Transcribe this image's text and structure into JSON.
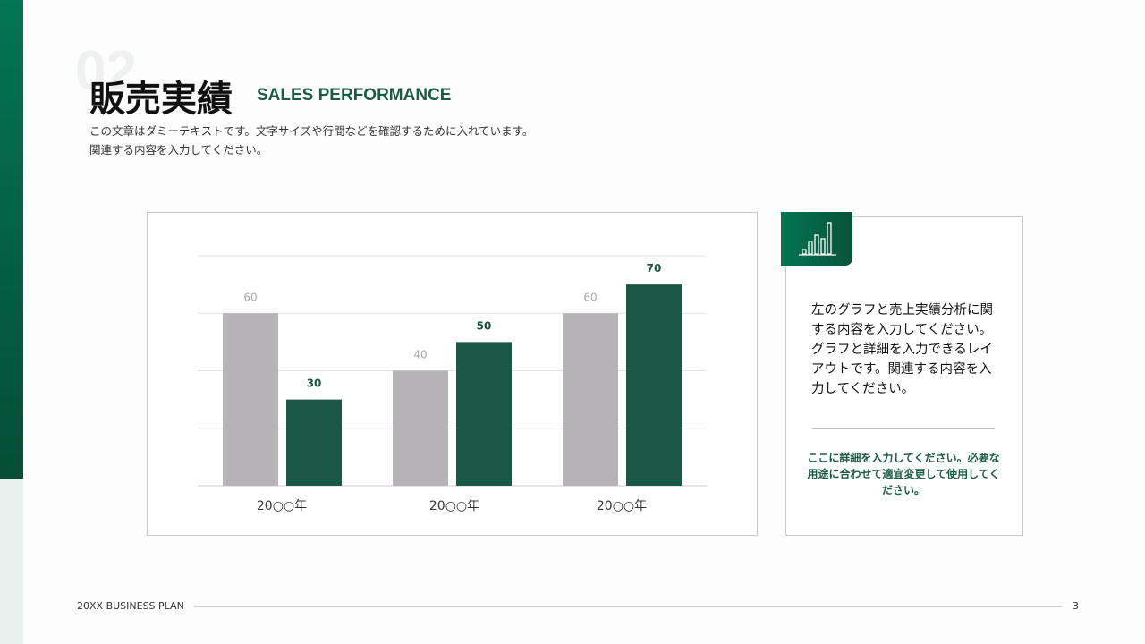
{
  "header": {
    "section_number": "02",
    "title": "販売実績",
    "subtitle": "SALES PERFORMANCE",
    "description_line1": "この文章はダミーテキストです。文字サイズや行間などを確認するために入れています。",
    "description_line2": "関連する内容を入力してください。"
  },
  "chart_data": {
    "type": "bar",
    "categories": [
      "20○○年",
      "20○○年",
      "20○○年"
    ],
    "series": [
      {
        "values": [
          60,
          40,
          60
        ],
        "color": "#b5b3b5"
      },
      {
        "values": [
          30,
          50,
          70
        ],
        "color": "#1a5744"
      }
    ],
    "ylim": [
      0,
      80
    ],
    "grid": true,
    "title": "",
    "xlabel": "",
    "ylabel": ""
  },
  "card": {
    "icon": "bar-chart-icon",
    "body": "左のグラフと売上実績分析に関する内容を入力してください。グラフと詳細を入力できるレイアウトです。関連する内容を入力してください。",
    "note": "ここに詳細を入力してください。必要な用途に合わせて適宜変更して使用してください。"
  },
  "footer": {
    "label": "20XX BUSINESS PLAN",
    "page": "3"
  }
}
